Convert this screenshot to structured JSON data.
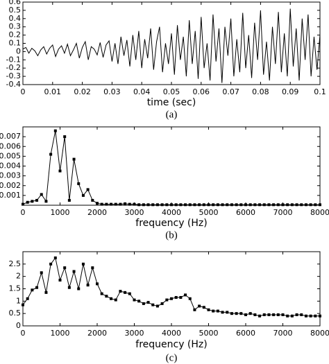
{
  "chart_data": [
    {
      "type": "line",
      "x_label": "time (sec)",
      "caption": "(a)",
      "color": "#000000",
      "x": [
        0,
        0.001,
        0.002,
        0.003,
        0.004,
        0.005,
        0.006,
        0.007,
        0.008,
        0.009,
        0.01,
        0.011,
        0.012,
        0.013,
        0.014,
        0.015,
        0.016,
        0.017,
        0.018,
        0.019,
        0.02,
        0.021,
        0.022,
        0.023,
        0.024,
        0.025,
        0.026,
        0.027,
        0.028,
        0.029,
        0.03,
        0.031,
        0.032,
        0.033,
        0.034,
        0.035,
        0.036,
        0.037,
        0.038,
        0.039,
        0.04,
        0.041,
        0.042,
        0.043,
        0.044,
        0.045,
        0.046,
        0.047,
        0.048,
        0.049,
        0.05,
        0.051,
        0.052,
        0.053,
        0.054,
        0.055,
        0.056,
        0.057,
        0.058,
        0.059,
        0.06,
        0.061,
        0.062,
        0.063,
        0.064,
        0.065,
        0.066,
        0.067,
        0.068,
        0.069,
        0.07,
        0.071,
        0.072,
        0.073,
        0.074,
        0.075,
        0.076,
        0.077,
        0.078,
        0.079,
        0.08,
        0.081,
        0.082,
        0.083,
        0.084,
        0.085,
        0.086,
        0.087,
        0.088,
        0.089,
        0.09,
        0.091,
        0.092,
        0.093,
        0.094,
        0.095,
        0.096,
        0.097,
        0.098,
        0.099,
        0.1
      ],
      "values": [
        0.03,
        0.05,
        -0.02,
        0.04,
        0.01,
        -0.05,
        0.02,
        0.06,
        -0.03,
        0.04,
        0.08,
        -0.06,
        0.03,
        0.07,
        -0.02,
        0.09,
        -0.05,
        0.02,
        0.1,
        -0.08,
        0.05,
        0.12,
        -0.1,
        0.06,
        0.03,
        -0.04,
        0.11,
        -0.07,
        0.08,
        0.13,
        -0.12,
        0.1,
        -0.15,
        0.18,
        -0.05,
        0.14,
        -0.18,
        0.2,
        -0.1,
        0.25,
        -0.2,
        0.15,
        -0.08,
        0.28,
        -0.22,
        0.12,
        0.3,
        -0.25,
        0.1,
        -0.15,
        0.22,
        -0.28,
        0.32,
        -0.1,
        0.18,
        -0.3,
        0.38,
        -0.15,
        0.25,
        -0.33,
        0.42,
        -0.2,
        0.1,
        -0.35,
        0.45,
        -0.12,
        0.28,
        -0.38,
        0.3,
        -0.05,
        0.4,
        -0.3,
        0.15,
        -0.25,
        0.47,
        -0.2,
        0.2,
        -0.32,
        0.35,
        -0.1,
        0.5,
        -0.28,
        0.12,
        -0.35,
        0.3,
        -0.15,
        0.48,
        -0.25,
        0.22,
        -0.3,
        0.52,
        -0.18,
        0.28,
        -0.35,
        0.4,
        -0.1,
        0.45,
        -0.3,
        0.18,
        -0.22,
        0.2
      ],
      "xlim": [
        0,
        0.1
      ],
      "xticks": [
        0,
        0.01,
        0.02,
        0.03,
        0.04,
        0.05,
        0.06,
        0.07,
        0.08,
        0.09,
        0.1
      ],
      "ylim": [
        -0.4,
        0.6
      ],
      "yticks": [
        -0.4,
        -0.3,
        -0.2,
        -0.1,
        0,
        0.1,
        0.2,
        0.3,
        0.4,
        0.5,
        0.6
      ]
    },
    {
      "type": "line",
      "x_label": "frequency (Hz)",
      "caption": "(b)",
      "color": "#000000",
      "marker": "square",
      "x": [
        0,
        125,
        250,
        375,
        500,
        625,
        750,
        875,
        1000,
        1125,
        1250,
        1375,
        1500,
        1625,
        1750,
        1875,
        2000,
        2125,
        2250,
        2375,
        2500,
        2625,
        2750,
        2875,
        3000,
        3125,
        3250,
        3375,
        3500,
        3625,
        3750,
        3875,
        4000,
        4125,
        4250,
        4375,
        4500,
        4625,
        4750,
        4875,
        5000,
        5125,
        5250,
        5375,
        5500,
        5625,
        5750,
        5875,
        6000,
        6125,
        6250,
        6375,
        6500,
        6625,
        6750,
        6875,
        7000,
        7125,
        7250,
        7375,
        7500,
        7625,
        7750,
        7875,
        8000
      ],
      "values": [
        0.0001,
        0.0003,
        0.0004,
        0.0005,
        0.0011,
        0.0004,
        0.0052,
        0.0076,
        0.0035,
        0.007,
        0.0005,
        0.0047,
        0.0022,
        0.001,
        0.0016,
        0.0005,
        0.0002,
        0.0001,
        0.0001,
        0.0001,
        0.0001,
        0.0001,
        0.00015,
        0.0001,
        0.0001,
        5e-05,
        5e-05,
        5e-05,
        5e-05,
        5e-05,
        5e-05,
        5e-05,
        5e-05,
        5e-05,
        5e-05,
        5e-05,
        5e-05,
        5e-05,
        5e-05,
        5e-05,
        5e-05,
        5e-05,
        5e-05,
        5e-05,
        5e-05,
        5e-05,
        5e-05,
        5e-05,
        5e-05,
        5e-05,
        5e-05,
        5e-05,
        5e-05,
        5e-05,
        5e-05,
        5e-05,
        5e-05,
        5e-05,
        5e-05,
        5e-05,
        5e-05,
        5e-05,
        5e-05,
        5e-05,
        5e-05
      ],
      "xlim": [
        0,
        8000
      ],
      "xticks": [
        0,
        1000,
        2000,
        3000,
        4000,
        5000,
        6000,
        7000,
        8000
      ],
      "ylim": [
        0,
        0.008
      ],
      "yticks": [
        0.001,
        0.002,
        0.003,
        0.004,
        0.005,
        0.006,
        0.007
      ]
    },
    {
      "type": "line",
      "x_label": "frequency (Hz)",
      "caption": "(c)",
      "color": "#000000",
      "marker": "square",
      "x": [
        0,
        125,
        250,
        375,
        500,
        625,
        750,
        875,
        1000,
        1125,
        1250,
        1375,
        1500,
        1625,
        1750,
        1875,
        2000,
        2125,
        2250,
        2375,
        2500,
        2625,
        2750,
        2875,
        3000,
        3125,
        3250,
        3375,
        3500,
        3625,
        3750,
        3875,
        4000,
        4125,
        4250,
        4375,
        4500,
        4625,
        4750,
        4875,
        5000,
        5125,
        5250,
        5375,
        5500,
        5625,
        5750,
        5875,
        6000,
        6125,
        6250,
        6375,
        6500,
        6625,
        6750,
        6875,
        7000,
        7125,
        7250,
        7375,
        7500,
        7625,
        7750,
        7875,
        8000
      ],
      "values": [
        0.85,
        1.1,
        1.45,
        1.55,
        2.15,
        1.35,
        2.5,
        2.75,
        1.85,
        2.35,
        1.55,
        2.2,
        1.5,
        2.5,
        1.65,
        2.35,
        1.7,
        1.3,
        1.2,
        1.1,
        1.05,
        1.4,
        1.35,
        1.3,
        1.05,
        1.0,
        0.9,
        0.95,
        0.85,
        0.8,
        0.9,
        1.05,
        1.1,
        1.15,
        1.15,
        1.25,
        1.1,
        0.65,
        0.8,
        0.75,
        0.65,
        0.6,
        0.6,
        0.55,
        0.55,
        0.5,
        0.5,
        0.5,
        0.45,
        0.5,
        0.45,
        0.4,
        0.45,
        0.45,
        0.45,
        0.45,
        0.45,
        0.4,
        0.4,
        0.45,
        0.45,
        0.4,
        0.4,
        0.4,
        0.4
      ],
      "xlim": [
        0,
        8000
      ],
      "xticks": [
        0,
        1000,
        2000,
        3000,
        4000,
        5000,
        6000,
        7000,
        8000
      ],
      "ylim": [
        0,
        3
      ],
      "yticks": [
        0,
        0.5,
        1,
        1.5,
        2,
        2.5
      ]
    }
  ]
}
